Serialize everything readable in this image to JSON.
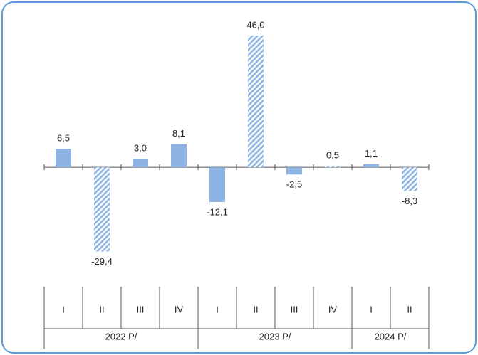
{
  "chart_data": {
    "type": "bar",
    "groups": [
      {
        "name": "2022 P/",
        "categories": [
          "I",
          "II",
          "III",
          "IV"
        ]
      },
      {
        "name": "2023 P/",
        "categories": [
          "I",
          "II",
          "III",
          "IV"
        ]
      },
      {
        "name": "2024 P/",
        "categories": [
          "I",
          "II"
        ]
      }
    ],
    "values": [
      6.5,
      -29.4,
      3.0,
      8.1,
      -12.1,
      46.0,
      -2.5,
      0.5,
      1.1,
      -8.3
    ],
    "value_labels": [
      "6,5",
      "-29,4",
      "3,0",
      "8,1",
      "-12,1",
      "46,0",
      "-2,5",
      "0,5",
      "1,1",
      "-8,3"
    ],
    "hatched": [
      false,
      true,
      false,
      false,
      false,
      true,
      false,
      true,
      false,
      true
    ],
    "color": "#8db4e2",
    "ylim": [
      -35,
      50
    ]
  }
}
